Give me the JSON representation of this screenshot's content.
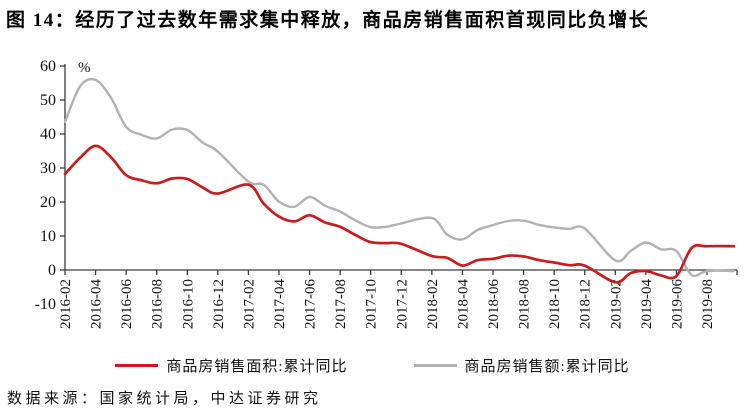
{
  "title": "图 14：经历了过去数年需求集中释放，商品房销售面积首现同比负增长",
  "footer": {
    "source_text": "数据来源：国家统计局，中达证券研究"
  },
  "colors": {
    "series_area_red": "#cc1a1d",
    "series_value_gray": "#b2b2b2",
    "axis": "#3c3c3c",
    "text": "#111111"
  },
  "legend": {
    "series": [
      {
        "label": "商品房销售面积:累计同比",
        "color": "#cc1a1d"
      },
      {
        "label": "商品房销售额:累计同比",
        "color": "#b2b2b2"
      }
    ]
  },
  "chart_data": {
    "type": "line",
    "unit_label": "%",
    "ylim": [
      -10,
      60
    ],
    "y_ticks": [
      60,
      50,
      40,
      30,
      20,
      10,
      0,
      -10
    ],
    "grid": false,
    "legend_position": "bottom",
    "x_tick_labels": [
      "2016-02",
      "2016-04",
      "2016-06",
      "2016-08",
      "2016-10",
      "2016-12",
      "2017-02",
      "2017-04",
      "2017-06",
      "2017-08",
      "2017-10",
      "2017-12",
      "2018-02",
      "2018-04",
      "2018-06",
      "2018-08",
      "2018-10",
      "2018-12",
      "2019-02",
      "2019-04",
      "2019-06",
      "2019-08"
    ],
    "dates": [
      "2016-02",
      "2016-03",
      "2016-04",
      "2016-05",
      "2016-06",
      "2016-07",
      "2016-08",
      "2016-09",
      "2016-10",
      "2016-11",
      "2016-12",
      "2017-02",
      "2017-03",
      "2017-04",
      "2017-05",
      "2017-06",
      "2017-07",
      "2017-08",
      "2017-09",
      "2017-10",
      "2017-11",
      "2017-12",
      "2018-02",
      "2018-03",
      "2018-04",
      "2018-05",
      "2018-06",
      "2018-07",
      "2018-08",
      "2018-09",
      "2018-10",
      "2018-11",
      "2018-12",
      "2019-02",
      "2019-03",
      "2019-04",
      "2019-05",
      "2019-06",
      "2019-07",
      "2019-08"
    ],
    "series": [
      {
        "name": "商品房销售面积:累计同比",
        "color": "#cc1a1d",
        "values": [
          28.2,
          33.1,
          36.5,
          33.2,
          27.9,
          26.4,
          25.5,
          26.9,
          26.8,
          24.3,
          22.5,
          25.1,
          19.5,
          15.7,
          14.3,
          16.1,
          14.0,
          12.7,
          10.3,
          8.2,
          7.9,
          7.7,
          4.1,
          3.6,
          1.3,
          2.9,
          3.3,
          4.2,
          4.0,
          2.9,
          2.2,
          1.4,
          1.3,
          -3.6,
          -0.9,
          -0.3,
          -1.6,
          -1.8,
          6.5,
          7.0
        ]
      },
      {
        "name": "商品房销售额:累计同比",
        "color": "#b2b2b2",
        "values": [
          43.6,
          54.1,
          55.9,
          50.7,
          42.1,
          39.8,
          38.7,
          41.3,
          41.2,
          37.5,
          34.8,
          26.0,
          25.1,
          20.1,
          18.6,
          21.5,
          18.9,
          17.2,
          14.6,
          12.6,
          12.7,
          13.7,
          15.3,
          10.4,
          9.0,
          11.8,
          13.2,
          14.4,
          14.5,
          13.3,
          12.5,
          12.1,
          12.2,
          2.8,
          5.6,
          8.1,
          6.1,
          5.6,
          -1.5,
          -0.3
        ]
      }
    ],
    "lines_extend_to_axis_end": true
  }
}
